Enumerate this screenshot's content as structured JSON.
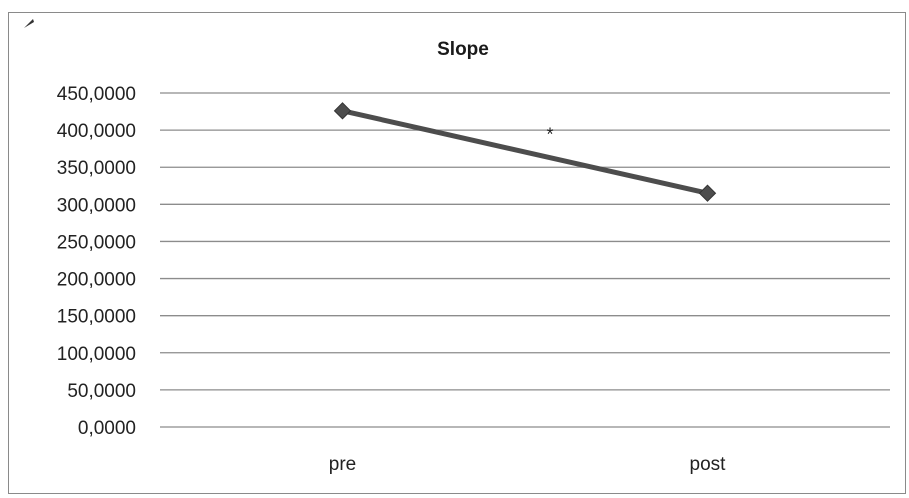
{
  "chart_data": {
    "type": "line",
    "title": "Slope",
    "xlabel": "",
    "ylabel": "",
    "categories": [
      "pre",
      "post"
    ],
    "series": [
      {
        "values": [
          426,
          315
        ]
      }
    ],
    "ylim": [
      0,
      450
    ],
    "yticks": [
      0,
      50,
      100,
      150,
      200,
      250,
      300,
      350,
      400,
      450
    ],
    "ytick_labels": [
      "0,0000",
      "50,0000",
      "100,0000",
      "150,0000",
      "200,0000",
      "250,0000",
      "300,0000",
      "350,0000",
      "400,0000",
      "450,0000"
    ],
    "annotations": [
      {
        "text": "*",
        "x": 0.5,
        "y": 410
      }
    ],
    "grid": true,
    "legend": "none",
    "colors": {
      "line": "#4d4d4d",
      "marker": "#4d4d4d",
      "grid": "#8c8c8c",
      "frame": "#8a8a8a"
    }
  }
}
